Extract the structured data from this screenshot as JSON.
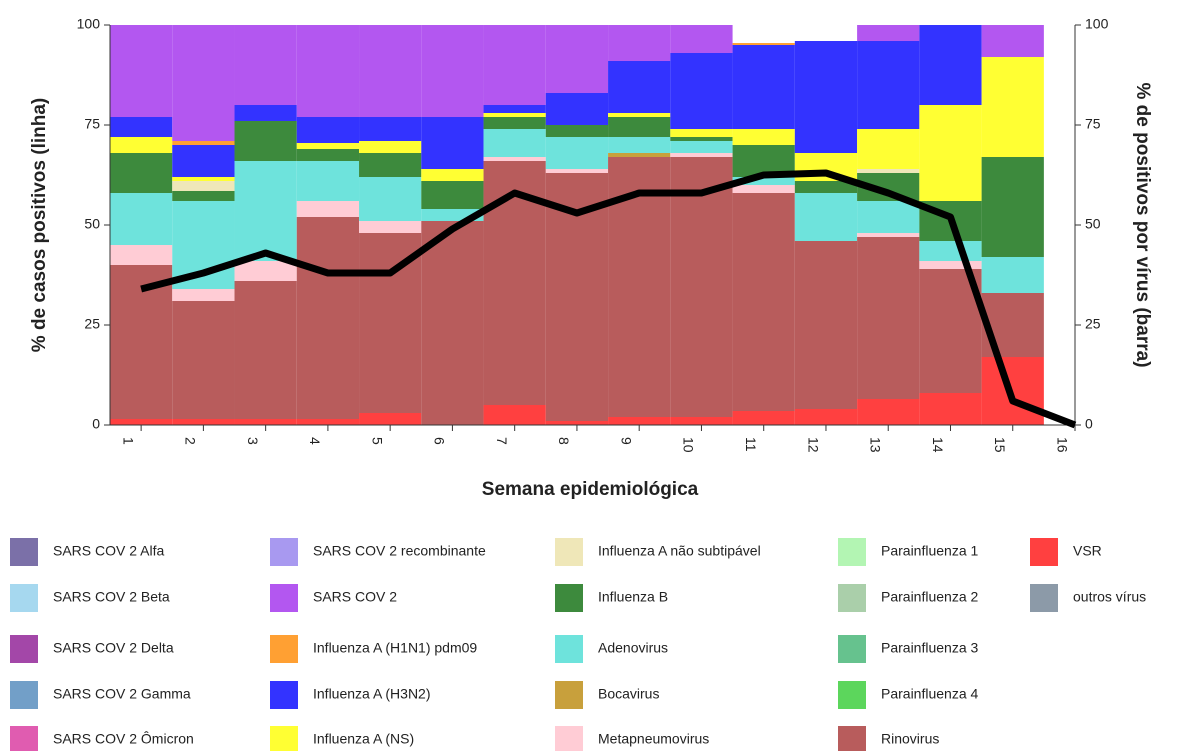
{
  "chart_data": {
    "type": "bar",
    "stacked": true,
    "x_label": "Semana epidemiológica",
    "y_label": "% de casos positivos (linha)",
    "y2_label": "% de positivos por vírus (barra)",
    "categories": [
      "1",
      "2",
      "3",
      "4",
      "5",
      "6",
      "7",
      "8",
      "9",
      "10",
      "11",
      "12",
      "13",
      "14",
      "15",
      "16"
    ],
    "ylim": [
      0,
      100
    ],
    "yticks": [
      0,
      25,
      50,
      75,
      100
    ],
    "y2lim": [
      0,
      100
    ],
    "y2ticks": [
      0,
      25,
      50,
      75,
      100
    ],
    "line": {
      "type": "line",
      "color": "#000000",
      "values": [
        34,
        38,
        43,
        38,
        38,
        49,
        58,
        53,
        58,
        58,
        62.5,
        63,
        58,
        52,
        6,
        0
      ]
    },
    "series": [
      {
        "name": "SARS COV 2 Alfa",
        "color": "#7b70a8",
        "axis": "y2",
        "values": [
          0,
          0,
          0,
          0,
          0,
          0,
          0,
          0,
          0,
          0,
          0,
          0,
          0,
          0,
          0,
          0
        ]
      },
      {
        "name": "SARS COV 2 Beta",
        "color": "#a6d8ef",
        "axis": "y2",
        "values": [
          0,
          0,
          0,
          0,
          0,
          0,
          0,
          0,
          0,
          0,
          0,
          0,
          0,
          0,
          0,
          0
        ]
      },
      {
        "name": "SARS COV 2 Delta",
        "color": "#a347a8",
        "axis": "y2",
        "values": [
          0,
          0,
          0,
          0,
          0,
          0,
          0,
          0,
          0,
          0,
          0,
          0,
          0,
          0,
          0,
          0
        ]
      },
      {
        "name": "SARS COV 2 Gamma",
        "color": "#729fc8",
        "axis": "y2",
        "values": [
          0,
          0,
          0,
          0,
          0,
          0,
          0,
          0,
          0,
          0,
          0,
          0,
          0,
          0,
          0,
          0
        ]
      },
      {
        "name": "SARS COV 2 Ômicron",
        "color": "#e05cb0",
        "axis": "y2",
        "values": [
          0,
          0,
          0,
          0,
          0,
          0,
          0,
          0,
          0,
          0,
          0,
          0,
          0,
          0,
          0,
          0
        ]
      },
      {
        "name": "SARS COV 2 recombinante",
        "color": "#a899f0",
        "axis": "y2",
        "values": [
          0,
          0,
          0,
          0,
          0,
          0,
          0,
          0,
          0,
          0,
          0,
          0,
          0,
          0,
          0,
          0
        ]
      },
      {
        "name": "SARS COV 2",
        "color": "#b357f0",
        "axis": "y2",
        "values": [
          23,
          29,
          20,
          23,
          23,
          23,
          20,
          17,
          9,
          7,
          0,
          0,
          4,
          0,
          8,
          0
        ]
      },
      {
        "name": "Influenza A (H1N1) pdm09",
        "color": "#ffa033",
        "axis": "y2",
        "values": [
          0,
          1,
          0,
          0,
          0,
          0,
          0,
          0,
          0,
          0,
          0.5,
          0,
          0,
          0,
          0,
          0
        ]
      },
      {
        "name": "Influenza A (H3N2)",
        "color": "#3333ff",
        "axis": "y2",
        "values": [
          5,
          8,
          4,
          6.5,
          6,
          13,
          2,
          8,
          13,
          19,
          21,
          28,
          22,
          20,
          0,
          0
        ]
      },
      {
        "name": "Influenza A (NS)",
        "color": "#ffff33",
        "axis": "y2",
        "values": [
          4,
          1,
          0,
          1.5,
          3,
          3,
          1,
          0,
          1,
          2,
          4,
          7,
          10,
          24,
          25,
          0
        ]
      },
      {
        "name": "Influenza A não subtipável",
        "color": "#efe7b8",
        "axis": "y2",
        "values": [
          0,
          2.5,
          0,
          0,
          0,
          0,
          0,
          0,
          0,
          0,
          0,
          0,
          1,
          0,
          0,
          0
        ]
      },
      {
        "name": "Influenza B",
        "color": "#3d8a3d",
        "axis": "y2",
        "values": [
          10,
          2.5,
          10,
          3,
          6,
          7,
          3,
          3,
          5,
          1,
          8,
          3,
          7,
          10,
          25,
          0
        ]
      },
      {
        "name": "Adenovirus",
        "color": "#6ee3dc",
        "axis": "y2",
        "values": [
          13,
          22,
          25,
          10,
          11,
          3,
          7,
          8,
          4,
          3,
          2,
          12,
          8,
          5,
          9,
          0
        ]
      },
      {
        "name": "Bocavirus",
        "color": "#c8a03c",
        "axis": "y2",
        "values": [
          0,
          0,
          0,
          0,
          0,
          0,
          0,
          0,
          1,
          0,
          0,
          0,
          0,
          0,
          0,
          0
        ]
      },
      {
        "name": "Metapneumovirus",
        "color": "#ffccd5",
        "axis": "y2",
        "values": [
          5,
          3,
          5,
          4,
          3,
          0,
          1,
          1,
          0,
          1,
          2,
          0,
          1,
          2,
          0,
          0
        ]
      },
      {
        "name": "Parainfluenza 1",
        "color": "#b3f5b3",
        "axis": "y2",
        "values": [
          0,
          0,
          0,
          0,
          0,
          0,
          0,
          0,
          0,
          0,
          0,
          0,
          0,
          0,
          0,
          0
        ]
      },
      {
        "name": "Parainfluenza 2",
        "color": "#aacfaa",
        "axis": "y2",
        "values": [
          0,
          0,
          0,
          0,
          0,
          0,
          0,
          0,
          0,
          0,
          0,
          0,
          0,
          0,
          0,
          0
        ]
      },
      {
        "name": "Parainfluenza 3",
        "color": "#66c28e",
        "axis": "y2",
        "values": [
          0,
          0,
          0,
          0,
          0,
          0,
          0,
          0,
          0,
          0,
          0,
          0,
          0,
          0,
          0,
          0
        ]
      },
      {
        "name": "Parainfluenza 4",
        "color": "#5cd65c",
        "axis": "y2",
        "values": [
          0,
          0,
          0,
          0,
          0,
          0,
          0,
          0,
          0,
          0,
          0,
          0,
          0,
          0,
          0,
          0
        ]
      },
      {
        "name": "Rinovirus",
        "color": "#b85c5c",
        "axis": "y2",
        "values": [
          38.5,
          29.5,
          34.5,
          50.5,
          45,
          51,
          61,
          62,
          65,
          65,
          54.5,
          42,
          40.5,
          31,
          16,
          0
        ]
      },
      {
        "name": "VSR",
        "color": "#ff4040",
        "axis": "y2",
        "values": [
          1.5,
          1.5,
          1.5,
          1.5,
          3,
          0,
          5,
          1,
          2,
          2,
          3.5,
          4,
          6.5,
          8,
          17,
          0
        ]
      },
      {
        "name": "outros vírus",
        "color": "#8c9aa8",
        "axis": "y2",
        "values": [
          0,
          0,
          0,
          0,
          0,
          0,
          0,
          0,
          0,
          0,
          0,
          0,
          0,
          0,
          0,
          0
        ]
      }
    ]
  }
}
